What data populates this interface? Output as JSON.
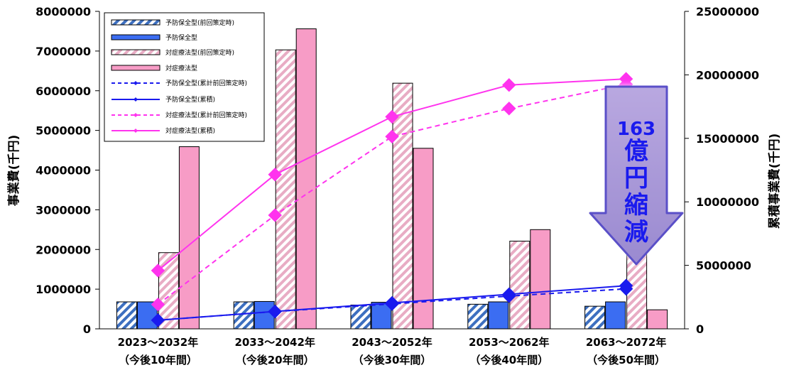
{
  "chart_data": {
    "type": "bar",
    "categories": [
      [
        "2023～2032年",
        "（今後10年間）"
      ],
      [
        "2033～2042年",
        "（今後20年間）"
      ],
      [
        "2043～2052年",
        "（今後30年間）"
      ],
      [
        "2053～2062年",
        "（今後40年間）"
      ],
      [
        "2063～2072年",
        "（今後50年間）"
      ]
    ],
    "ylabel": "事業費(千円)",
    "ylabel_right": "累積事業費(千円)",
    "ylim": [
      0,
      8000000
    ],
    "ylim_right": [
      0,
      25000000
    ],
    "yticks": [
      "0",
      "1000000",
      "2000000",
      "3000000",
      "4000000",
      "5000000",
      "6000000",
      "7000000",
      "8000000"
    ],
    "yticks_right": [
      "0",
      "5000000",
      "10000000",
      "15000000",
      "20000000",
      "25000000"
    ],
    "bar_series": [
      {
        "name": "予防保全型(前回策定時)",
        "values": [
          680000,
          680000,
          600000,
          620000,
          570000
        ],
        "color": "#4a78c0",
        "pattern": "hatch-blue"
      },
      {
        "name": "予防保全型",
        "values": [
          680000,
          690000,
          670000,
          680000,
          680000
        ],
        "color": "#3b6df2",
        "pattern": "solid"
      },
      {
        "name": "対症療法型(前回策定時)",
        "values": [
          1920000,
          7030000,
          6190000,
          2210000,
          1900000
        ],
        "color": "#e8a4bf",
        "pattern": "hatch-pink"
      },
      {
        "name": "対症療法型",
        "values": [
          4590000,
          7560000,
          4550000,
          2500000,
          480000
        ],
        "color": "#f79cc6",
        "pattern": "solid"
      }
    ],
    "line_series": [
      {
        "name": "予防保全型(累計前回策定時)",
        "values": [
          680000,
          1360000,
          1960000,
          2580000,
          3150000
        ],
        "color": "#1a1aee",
        "dash": true
      },
      {
        "name": "予防保全型(累積)",
        "values": [
          680000,
          1370000,
          2040000,
          2720000,
          3400000
        ],
        "color": "#1a1aee",
        "dash": false
      },
      {
        "name": "対症療法型(累計前回策定時)",
        "values": [
          1920000,
          8950000,
          15140000,
          17350000,
          19250000
        ],
        "color": "#ff33ee",
        "dash": true
      },
      {
        "name": "対症療法型(累積)",
        "values": [
          4590000,
          12150000,
          16700000,
          19200000,
          19680000
        ],
        "color": "#ff33ee",
        "dash": false
      }
    ],
    "legend_position": "top-left",
    "annotation": {
      "lines": [
        "163",
        "億",
        "円",
        "縮",
        "減"
      ],
      "color": "#1a1aee"
    }
  }
}
